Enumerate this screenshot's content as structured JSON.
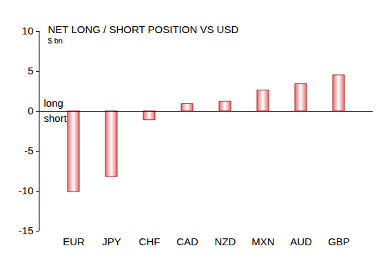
{
  "chart_data": {
    "type": "bar",
    "title": "NET LONG / SHORT POSITION VS USD",
    "subtitle": "$ bn",
    "categories": [
      "EUR",
      "JPY",
      "CHF",
      "CAD",
      "NZD",
      "MXN",
      "AUD",
      "GBP"
    ],
    "values": [
      -10.1,
      -8.2,
      -1.1,
      0.9,
      1.2,
      2.6,
      3.4,
      4.5
    ],
    "color": "#e86a6a",
    "ylim": [
      -15,
      10
    ],
    "yticks": [
      -15,
      -10,
      -5,
      0,
      5,
      10
    ],
    "annotations": [
      "long",
      "short"
    ],
    "grid": false
  }
}
